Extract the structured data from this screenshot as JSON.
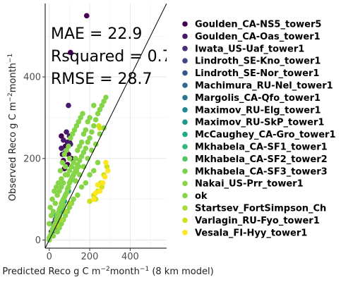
{
  "chart_data": {
    "type": "scatter",
    "xlabel": "Predicted Reco g C m",
    "xlabel_sup1": "−2",
    "xlabel_mid": "month",
    "xlabel_sup2": "−1",
    "xlabel_tail": " (8 km model)",
    "ylabel": "Observed Reco g C m",
    "ylabel_sup1": "−2",
    "ylabel_mid": "month",
    "ylabel_sup2": "−1",
    "x_ticks": [
      0,
      200,
      400
    ],
    "y_ticks": [
      0,
      200,
      400
    ],
    "xlim": [
      -20,
      580
    ],
    "ylim": [
      -20,
      580
    ],
    "grid": true,
    "legend_position": "right",
    "reference_line": "1:1",
    "annotations": [
      {
        "text": "MAE = 22.9"
      },
      {
        "text": "Rsquared = 0.7"
      },
      {
        "text": "RMSE = 28.7"
      }
    ],
    "series": [
      {
        "name": "Goulden_CA-NS5_tower5",
        "color": "#440154",
        "points": [
          [
            185,
            550
          ],
          [
            105,
            460
          ],
          [
            60,
            255
          ],
          [
            80,
            230
          ],
          [
            95,
            210
          ],
          [
            70,
            195
          ],
          [
            110,
            200
          ],
          [
            90,
            185
          ],
          [
            75,
            175
          ],
          [
            100,
            240
          ],
          [
            85,
            220
          ],
          [
            65,
            210
          ]
        ]
      },
      {
        "name": "Goulden_CA-Oas_tower1",
        "color": "#481a6c",
        "points": [
          [
            95,
            330
          ],
          [
            70,
            245
          ],
          [
            85,
            265
          ],
          [
            100,
            255
          ],
          [
            60,
            225
          ],
          [
            80,
            215
          ],
          [
            105,
            235
          ],
          [
            90,
            240
          ]
        ]
      },
      {
        "name": "Iwata_US-Uaf_tower1",
        "color": "#472f7d",
        "points": [
          [
            20,
            40
          ],
          [
            30,
            50
          ],
          [
            40,
            60
          ],
          [
            10,
            20
          ]
        ]
      },
      {
        "name": "Lindroth_SE-Kno_tower1",
        "color": "#414487",
        "points": [
          [
            30,
            45
          ],
          [
            50,
            70
          ],
          [
            20,
            30
          ]
        ]
      },
      {
        "name": "Lindroth_SE-Nor_tower1",
        "color": "#39568c",
        "points": [
          [
            40,
            55
          ],
          [
            60,
            80
          ],
          [
            25,
            35
          ]
        ]
      },
      {
        "name": "Machimura_RU-Nel_tower1",
        "color": "#31688e",
        "points": [
          [
            15,
            20
          ],
          [
            35,
            45
          ]
        ]
      },
      {
        "name": "Margolis_CA-Qfo_tower1",
        "color": "#2a788e",
        "points": [
          [
            25,
            30
          ],
          [
            45,
            55
          ]
        ]
      },
      {
        "name": "Maximov_RU-Elg_tower1",
        "color": "#23888e",
        "points": [
          [
            20,
            25
          ],
          [
            40,
            50
          ]
        ]
      },
      {
        "name": "Maximov_RU-SkP_tower1",
        "color": "#1f988b",
        "points": [
          [
            30,
            40
          ],
          [
            50,
            60
          ]
        ]
      },
      {
        "name": "McCaughey_CA-Gro_tower1",
        "color": "#22a884",
        "points": [
          [
            35,
            60
          ],
          [
            55,
            75
          ],
          [
            75,
            95
          ],
          [
            95,
            120
          ]
        ]
      },
      {
        "name": "Mkhabela_CA-SF1_tower1",
        "color": "#35b779",
        "points": [
          [
            40,
            50
          ],
          [
            60,
            70
          ]
        ]
      },
      {
        "name": "Mkhabela_CA-SF2_tower2",
        "color": "#54c568",
        "points": [
          [
            45,
            55
          ],
          [
            65,
            80
          ]
        ]
      },
      {
        "name": "Mkhabela_CA-SF3_tower3",
        "color": "#7ad151",
        "points": [
          [
            50,
            60
          ],
          [
            70,
            85
          ]
        ]
      },
      {
        "name": "Nakai_US-Prr_tower1",
        "color": "#8ad547",
        "points": [
          [
            20,
            30
          ],
          [
            40,
            45
          ]
        ]
      },
      {
        "name": "ok",
        "color": "#86d549",
        "points": [
          [
            0,
            5
          ],
          [
            10,
            15
          ],
          [
            20,
            25
          ],
          [
            30,
            40
          ],
          [
            40,
            60
          ],
          [
            50,
            75
          ],
          [
            60,
            90
          ],
          [
            70,
            100
          ],
          [
            80,
            110
          ],
          [
            90,
            125
          ],
          [
            100,
            140
          ],
          [
            110,
            150
          ],
          [
            120,
            160
          ],
          [
            130,
            175
          ],
          [
            140,
            185
          ],
          [
            150,
            195
          ],
          [
            160,
            205
          ],
          [
            170,
            215
          ],
          [
            180,
            225
          ],
          [
            190,
            240
          ],
          [
            200,
            250
          ],
          [
            210,
            265
          ],
          [
            220,
            280
          ],
          [
            230,
            295
          ],
          [
            240,
            310
          ],
          [
            250,
            320
          ],
          [
            260,
            330
          ],
          [
            270,
            340
          ],
          [
            280,
            350
          ],
          [
            130,
            145
          ],
          [
            150,
            160
          ],
          [
            170,
            180
          ],
          [
            190,
            200
          ],
          [
            210,
            220
          ],
          [
            230,
            235
          ],
          [
            250,
            260
          ],
          [
            270,
            275
          ],
          [
            100,
            200
          ],
          [
            80,
            180
          ],
          [
            60,
            150
          ],
          [
            40,
            110
          ],
          [
            20,
            70
          ],
          [
            0,
            40
          ],
          [
            10,
            60
          ],
          [
            30,
            90
          ],
          [
            50,
            120
          ],
          [
            70,
            140
          ],
          [
            90,
            160
          ],
          [
            110,
            180
          ],
          [
            130,
            200
          ],
          [
            150,
            230
          ],
          [
            170,
            260
          ],
          [
            190,
            290
          ],
          [
            140,
            220
          ],
          [
            160,
            240
          ],
          [
            180,
            270
          ],
          [
            200,
            300
          ],
          [
            220,
            330
          ],
          [
            120,
            190
          ],
          [
            100,
            170
          ],
          [
            80,
            160
          ],
          [
            60,
            130
          ],
          [
            5,
            80
          ],
          [
            15,
            100
          ],
          [
            25,
            120
          ],
          [
            35,
            130
          ],
          [
            45,
            140
          ],
          [
            55,
            170
          ],
          [
            65,
            190
          ],
          [
            75,
            210
          ],
          [
            85,
            220
          ],
          [
            95,
            230
          ],
          [
            105,
            250
          ],
          [
            115,
            260
          ],
          [
            125,
            270
          ],
          [
            135,
            280
          ],
          [
            145,
            290
          ],
          [
            155,
            300
          ],
          [
            165,
            310
          ],
          [
            20,
            10
          ],
          [
            40,
            20
          ],
          [
            60,
            40
          ],
          [
            80,
            60
          ],
          [
            100,
            80
          ],
          [
            120,
            100
          ],
          [
            140,
            110
          ],
          [
            160,
            130
          ],
          [
            180,
            140
          ],
          [
            200,
            160
          ],
          [
            220,
            170
          ],
          [
            240,
            190
          ],
          [
            50,
            30
          ],
          [
            70,
            50
          ],
          [
            90,
            70
          ],
          [
            110,
            90
          ],
          [
            0,
            0
          ],
          [
            5,
            10
          ],
          [
            15,
            25
          ],
          [
            25,
            35
          ],
          [
            35,
            50
          ],
          [
            45,
            65
          ],
          [
            55,
            80
          ],
          [
            65,
            95
          ],
          [
            75,
            105
          ],
          [
            85,
            115
          ],
          [
            95,
            130
          ],
          [
            105,
            145
          ],
          [
            115,
            155
          ],
          [
            125,
            165
          ],
          [
            135,
            170
          ],
          [
            145,
            180
          ]
        ]
      },
      {
        "name": "Startsev_FortSimpson_Ch",
        "color": "#a8db34",
        "points": [
          [
            60,
            50
          ],
          [
            80,
            70
          ],
          [
            100,
            90
          ],
          [
            40,
            35
          ]
        ]
      },
      {
        "name": "Varlagin_RU-Fyo_tower1",
        "color": "#d0e11c",
        "points": [
          [
            220,
            110
          ],
          [
            240,
            120
          ],
          [
            255,
            140
          ],
          [
            270,
            160
          ],
          [
            285,
            180
          ],
          [
            230,
            100
          ],
          [
            200,
            95
          ],
          [
            260,
            130
          ],
          [
            245,
            280
          ],
          [
            250,
            275
          ]
        ]
      },
      {
        "name": "Vesala_FI-Hyy_tower1",
        "color": "#fde725",
        "points": [
          [
            250,
            120
          ],
          [
            265,
            140
          ],
          [
            275,
            155
          ],
          [
            290,
            170
          ],
          [
            230,
            115
          ],
          [
            220,
            100
          ],
          [
            280,
            190
          ],
          [
            240,
            135
          ]
        ]
      }
    ]
  }
}
